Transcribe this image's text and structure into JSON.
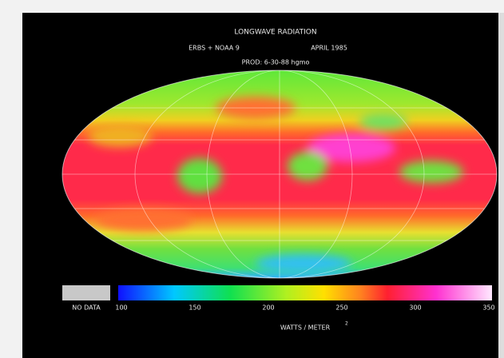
{
  "map": {
    "title": "LONGWAVE RADIATION",
    "source": "ERBS + NOAA 9",
    "period": "APRIL 1985",
    "production": "PROD: 6-30-88 hgmo",
    "legend": {
      "no_data_label": "NO DATA",
      "lim": [
        100,
        350
      ],
      "ticks": [
        100,
        150,
        200,
        250,
        300,
        350
      ],
      "unit": "WATTS / METER",
      "unit_exponent": "2"
    }
  }
}
